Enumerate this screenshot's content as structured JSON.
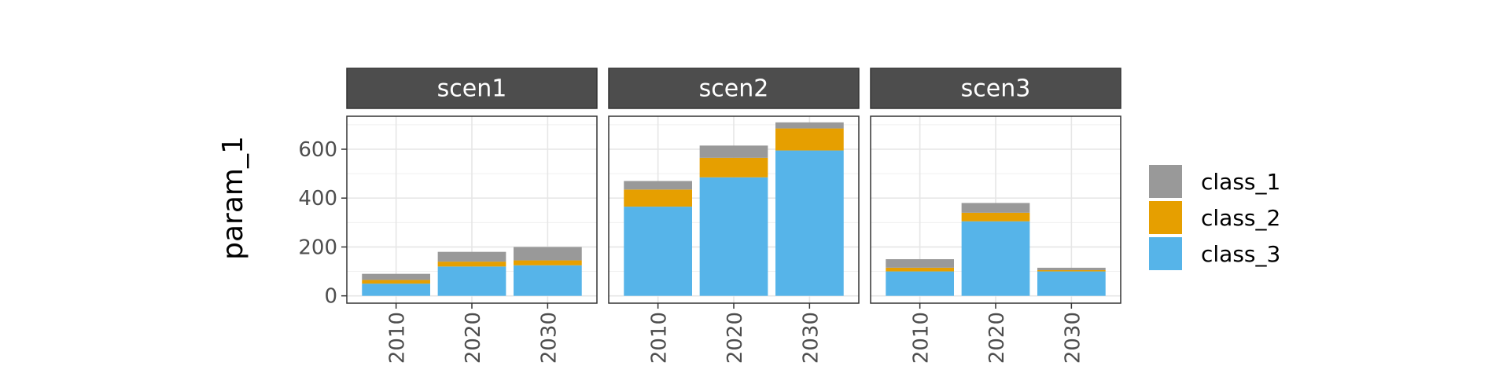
{
  "chart_data": {
    "type": "bar",
    "stacked": true,
    "facet_by": "scenario",
    "ylabel": "param_1",
    "xlabel": "",
    "ylim": [
      -30,
      735
    ],
    "y_ticks": [
      0,
      200,
      400,
      600
    ],
    "y_tick_labels": [
      "0",
      "200",
      "400",
      "600"
    ],
    "categories": [
      "2010",
      "2020",
      "2030"
    ],
    "legend_position": "right",
    "series_order": [
      "class_3",
      "class_2",
      "class_1"
    ],
    "colors": {
      "class_1": "#999999",
      "class_2": "#E69F00",
      "class_3": "#56B4E9"
    },
    "legend": [
      "class_1",
      "class_2",
      "class_3"
    ],
    "facets": [
      {
        "label": "scen1",
        "series": [
          {
            "name": "class_1",
            "values": [
              25,
              40,
              55
            ]
          },
          {
            "name": "class_2",
            "values": [
              15,
              20,
              20
            ]
          },
          {
            "name": "class_3",
            "values": [
              50,
              120,
              125
            ]
          }
        ]
      },
      {
        "label": "scen2",
        "series": [
          {
            "name": "class_1",
            "values": [
              35,
              50,
              25
            ]
          },
          {
            "name": "class_2",
            "values": [
              70,
              80,
              90
            ]
          },
          {
            "name": "class_3",
            "values": [
              365,
              485,
              595
            ]
          }
        ]
      },
      {
        "label": "scen3",
        "series": [
          {
            "name": "class_1",
            "values": [
              35,
              40,
              10
            ]
          },
          {
            "name": "class_2",
            "values": [
              15,
              35,
              5
            ]
          },
          {
            "name": "class_3",
            "values": [
              100,
              305,
              100
            ]
          }
        ]
      }
    ]
  }
}
